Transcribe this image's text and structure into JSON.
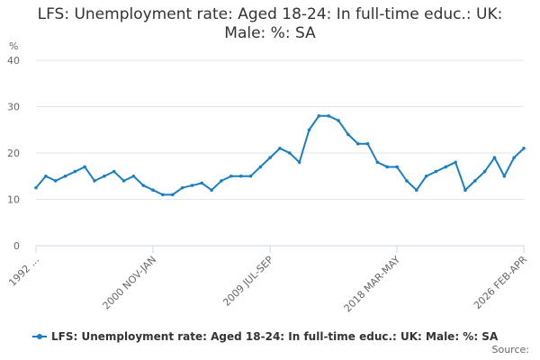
{
  "chart_data": {
    "type": "line",
    "title": "LFS: Unemployment rate: Aged 18-24: In full-time educ.: UK: Male: %: SA",
    "y_label": "%",
    "source": "Source:",
    "categories": [
      "1992 ...",
      null,
      null,
      null,
      null,
      null,
      null,
      null,
      null,
      null,
      null,
      null,
      "2000 NOV-JAN",
      null,
      null,
      null,
      null,
      null,
      null,
      null,
      null,
      null,
      null,
      null,
      "2009 JUL-SEP",
      null,
      null,
      null,
      null,
      null,
      null,
      null,
      null,
      null,
      null,
      null,
      null,
      "2018 MAR-MAY",
      null,
      null,
      null,
      null,
      null,
      null,
      null,
      null,
      null,
      null,
      null,
      null,
      "2026 FEB-APR"
    ],
    "series": [
      {
        "name": "LFS: Unemployment rate: Aged 18-24: In full-time educ.: UK: Male: %: SA",
        "color": "#1a7fc1",
        "values": [
          12.5,
          15,
          14,
          15,
          16,
          17,
          14,
          15,
          16,
          14,
          15,
          13,
          12,
          11,
          11,
          12.5,
          13,
          13.5,
          12,
          14,
          15,
          15,
          15,
          17,
          19,
          21,
          20,
          18,
          25,
          28,
          28,
          27,
          24,
          22,
          22,
          18,
          17,
          17,
          14,
          12,
          15,
          16,
          17,
          18,
          12,
          14,
          16,
          19,
          15,
          19,
          21
        ]
      }
    ],
    "ylim": [
      0,
      40
    ],
    "yticks": [
      0,
      10,
      20,
      30,
      40
    ],
    "grid": true,
    "legend": "bottom"
  }
}
